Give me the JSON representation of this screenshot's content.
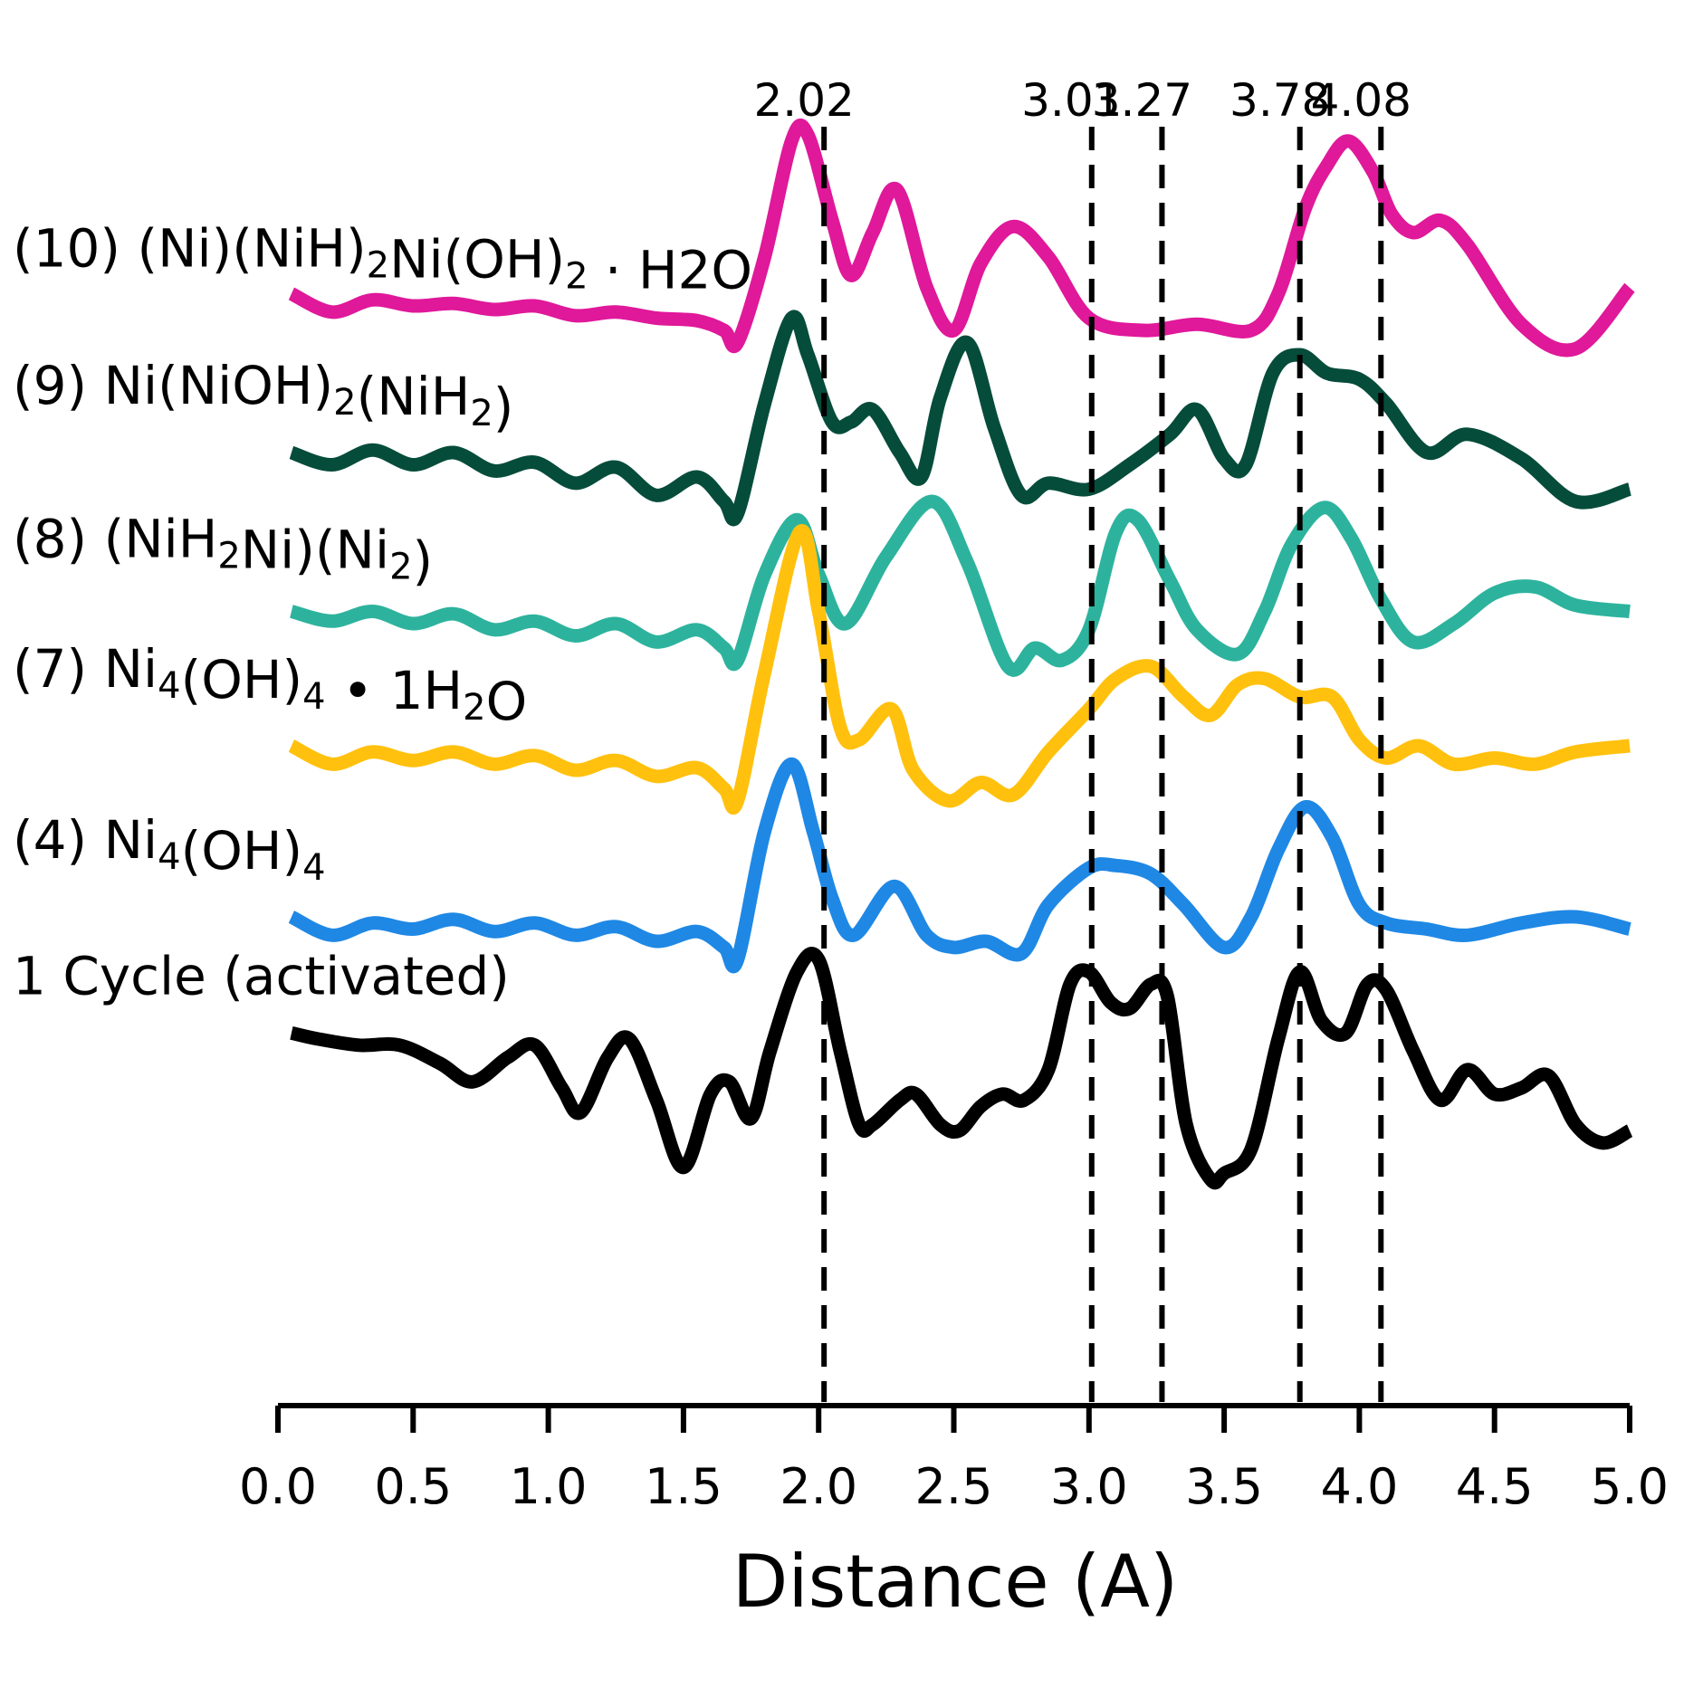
{
  "chart_data": {
    "type": "line",
    "title": "",
    "xlabel": "Distance (A)",
    "ylabel": "",
    "xlim": [
      0.0,
      5.0
    ],
    "xticks": [
      "0.0",
      "0.5",
      "1.0",
      "1.5",
      "2.0",
      "2.5",
      "3.0",
      "3.5",
      "4.0",
      "4.5",
      "5.0"
    ],
    "grid": false,
    "legend": "inline text labels at left of each trace",
    "reference_lines": [
      {
        "x": 2.02,
        "label": "2.02"
      },
      {
        "x": 3.01,
        "label": "3.01"
      },
      {
        "x": 3.27,
        "label": "3.27"
      },
      {
        "x": 3.78,
        "label": "3.78"
      },
      {
        "x": 4.08,
        "label": "4.08"
      }
    ],
    "y_scale": "offset traces, arbitrary units",
    "series": [
      {
        "name": "(10) (Ni)(NiH)₂Ni(OH)₂ · H2O",
        "label_parts": [
          {
            "t": "(10) (Ni)(NiH)"
          },
          {
            "t": "2",
            "sub": true
          },
          {
            "t": "Ni(OH)"
          },
          {
            "t": "2",
            "sub": true
          },
          {
            "t": " · H2O"
          }
        ],
        "color": "#e0189a",
        "offset": 5.0,
        "x": [
          0.05,
          0.2,
          0.35,
          0.5,
          0.65,
          0.8,
          0.95,
          1.1,
          1.25,
          1.4,
          1.55,
          1.65,
          1.7,
          1.8,
          1.9,
          1.96,
          2.05,
          2.12,
          2.2,
          2.29,
          2.4,
          2.5,
          2.6,
          2.72,
          2.85,
          3.0,
          3.2,
          3.4,
          3.6,
          3.7,
          3.8,
          3.88,
          3.96,
          4.05,
          4.12,
          4.2,
          4.3,
          4.4,
          4.6,
          4.8,
          5.0
        ],
        "y": [
          0.3,
          0.15,
          0.25,
          0.2,
          0.22,
          0.17,
          0.2,
          0.12,
          0.15,
          0.1,
          0.08,
          0.0,
          -0.1,
          0.6,
          1.55,
          1.6,
          0.9,
          0.45,
          0.8,
          1.15,
          0.35,
          0.0,
          0.55,
          0.85,
          0.6,
          0.1,
          0.0,
          0.05,
          0.0,
          0.3,
          1.0,
          1.35,
          1.55,
          1.3,
          0.95,
          0.8,
          0.9,
          0.7,
          0.05,
          -0.15,
          0.35
        ]
      },
      {
        "name": "(9) Ni(NiOH)₂(NiH₂)",
        "label_parts": [
          {
            "t": "(9) Ni(NiOH)"
          },
          {
            "t": "2",
            "sub": true
          },
          {
            "t": "(NiH"
          },
          {
            "t": "2",
            "sub": true
          },
          {
            "t": ")"
          }
        ],
        "color": "#064c3b",
        "offset": 3.7,
        "x": [
          0.05,
          0.2,
          0.35,
          0.5,
          0.65,
          0.8,
          0.95,
          1.1,
          1.25,
          1.4,
          1.55,
          1.65,
          1.7,
          1.8,
          1.9,
          1.96,
          2.05,
          2.12,
          2.2,
          2.3,
          2.38,
          2.45,
          2.55,
          2.65,
          2.75,
          2.85,
          3.0,
          3.15,
          3.3,
          3.4,
          3.5,
          3.58,
          3.68,
          3.78,
          3.88,
          4.0,
          4.1,
          4.25,
          4.4,
          4.6,
          4.8,
          5.0
        ],
        "y": [
          0.3,
          0.2,
          0.32,
          0.2,
          0.3,
          0.15,
          0.22,
          0.05,
          0.18,
          -0.05,
          0.1,
          -0.1,
          -0.2,
          0.7,
          1.4,
          1.1,
          0.55,
          0.55,
          0.65,
          0.3,
          0.1,
          0.75,
          1.2,
          0.5,
          -0.05,
          0.05,
          0.0,
          0.2,
          0.45,
          0.65,
          0.25,
          0.2,
          0.95,
          1.1,
          0.95,
          0.9,
          0.7,
          0.3,
          0.45,
          0.25,
          -0.1,
          0.0
        ]
      },
      {
        "name": "(8) (NiH₂Ni)(Ni₂)",
        "label_parts": [
          {
            "t": "(8) (NiH"
          },
          {
            "t": "2",
            "sub": true
          },
          {
            "t": "Ni)(Ni"
          },
          {
            "t": "2",
            "sub": true
          },
          {
            "t": ")"
          }
        ],
        "color": "#2db39d",
        "offset": 2.5,
        "x": [
          0.05,
          0.2,
          0.35,
          0.5,
          0.65,
          0.8,
          0.95,
          1.1,
          1.25,
          1.4,
          1.55,
          1.65,
          1.7,
          1.8,
          1.92,
          2.0,
          2.1,
          2.25,
          2.42,
          2.55,
          2.7,
          2.8,
          2.9,
          3.0,
          3.1,
          3.18,
          3.3,
          3.4,
          3.55,
          3.65,
          3.75,
          3.87,
          3.97,
          4.08,
          4.2,
          4.35,
          4.5,
          4.65,
          4.8,
          5.0
        ],
        "y": [
          0.2,
          0.12,
          0.2,
          0.1,
          0.18,
          0.05,
          0.12,
          0.0,
          0.1,
          -0.05,
          0.05,
          -0.1,
          -0.2,
          0.5,
          0.95,
          0.5,
          0.1,
          0.65,
          1.1,
          0.6,
          -0.25,
          -0.1,
          -0.2,
          0.05,
          0.85,
          0.95,
          0.45,
          0.05,
          -0.15,
          0.2,
          0.75,
          1.05,
          0.8,
          0.3,
          -0.05,
          0.1,
          0.35,
          0.4,
          0.25,
          0.2
        ]
      },
      {
        "name": "(7) Ni₄(OH)₄ • 1H₂O",
        "label_parts": [
          {
            "t": "(7) Ni"
          },
          {
            "t": "4",
            "sub": true
          },
          {
            "t": "(OH)"
          },
          {
            "t": "4",
            "sub": true
          },
          {
            "t": " • 1H"
          },
          {
            "t": "2",
            "sub": true
          },
          {
            "t": "O"
          }
        ],
        "color": "#ffc10e",
        "offset": 1.3,
        "x": [
          0.05,
          0.2,
          0.35,
          0.5,
          0.65,
          0.8,
          0.95,
          1.1,
          1.25,
          1.4,
          1.55,
          1.65,
          1.7,
          1.8,
          1.93,
          2.0,
          2.08,
          2.15,
          2.27,
          2.35,
          2.48,
          2.6,
          2.72,
          2.85,
          3.0,
          3.1,
          3.23,
          3.35,
          3.45,
          3.55,
          3.65,
          3.78,
          3.9,
          4.0,
          4.1,
          4.22,
          4.35,
          4.5,
          4.65,
          4.8,
          5.0
        ],
        "y": [
          0.3,
          0.15,
          0.25,
          0.18,
          0.25,
          0.15,
          0.22,
          0.1,
          0.18,
          0.05,
          0.12,
          -0.05,
          -0.15,
          0.9,
          2.05,
          1.4,
          0.45,
          0.35,
          0.6,
          0.1,
          -0.15,
          0.0,
          -0.1,
          0.25,
          0.6,
          0.85,
          0.95,
          0.7,
          0.55,
          0.8,
          0.85,
          0.7,
          0.7,
          0.35,
          0.2,
          0.3,
          0.15,
          0.2,
          0.15,
          0.25,
          0.3
        ]
      },
      {
        "name": "(4) Ni₄(OH)₄",
        "label_parts": [
          {
            "t": "(4) Ni"
          },
          {
            "t": "4",
            "sub": true
          },
          {
            "t": "(OH)"
          },
          {
            "t": "4",
            "sub": true
          }
        ],
        "color": "#1f88e5",
        "offset": 0.0,
        "x": [
          0.05,
          0.2,
          0.35,
          0.5,
          0.65,
          0.8,
          0.95,
          1.1,
          1.25,
          1.4,
          1.55,
          1.65,
          1.7,
          1.8,
          1.9,
          1.98,
          2.05,
          2.13,
          2.28,
          2.4,
          2.5,
          2.62,
          2.75,
          2.85,
          3.0,
          3.1,
          3.23,
          3.35,
          3.5,
          3.6,
          3.7,
          3.8,
          3.9,
          4.0,
          4.1,
          4.25,
          4.4,
          4.6,
          4.8,
          5.0
        ],
        "y": [
          0.2,
          0.05,
          0.15,
          0.1,
          0.18,
          0.08,
          0.15,
          0.05,
          0.12,
          0.0,
          0.08,
          -0.05,
          -0.15,
          0.9,
          1.45,
          0.9,
          0.35,
          0.05,
          0.45,
          0.05,
          -0.05,
          0.0,
          -0.1,
          0.3,
          0.6,
          0.62,
          0.55,
          0.3,
          -0.05,
          0.2,
          0.75,
          1.1,
          0.85,
          0.3,
          0.15,
          0.1,
          0.05,
          0.15,
          0.2,
          0.1
        ]
      },
      {
        "name": "1 Cycle (activated)",
        "label_parts": [
          {
            "t": "1 Cycle (activated)"
          }
        ],
        "color": "#000000",
        "offset": -1.3,
        "x": [
          0.05,
          0.15,
          0.3,
          0.45,
          0.6,
          0.72,
          0.85,
          0.95,
          1.05,
          1.12,
          1.22,
          1.3,
          1.4,
          1.5,
          1.6,
          1.67,
          1.75,
          1.82,
          1.92,
          2.0,
          2.08,
          2.15,
          2.2,
          2.3,
          2.36,
          2.45,
          2.52,
          2.6,
          2.68,
          2.76,
          2.85,
          2.93,
          3.0,
          3.08,
          3.15,
          3.23,
          3.29,
          3.36,
          3.45,
          3.5,
          3.6,
          3.7,
          3.78,
          3.86,
          3.95,
          4.03,
          4.1,
          4.2,
          4.3,
          4.4,
          4.5,
          4.6,
          4.7,
          4.8,
          4.9,
          5.0
        ],
        "y": [
          0.55,
          0.5,
          0.45,
          0.45,
          0.3,
          0.15,
          0.35,
          0.45,
          0.1,
          -0.1,
          0.35,
          0.5,
          0.0,
          -0.55,
          0.05,
          0.15,
          -0.15,
          0.4,
          1.05,
          1.15,
          0.4,
          -0.2,
          -0.2,
          0.0,
          0.05,
          -0.2,
          -0.25,
          -0.05,
          0.05,
          0.0,
          0.25,
          0.95,
          1.05,
          0.8,
          0.75,
          0.95,
          0.85,
          -0.2,
          -0.65,
          -0.6,
          -0.4,
          0.5,
          1.05,
          0.65,
          0.55,
          0.95,
          0.9,
          0.4,
          0.0,
          0.25,
          0.05,
          0.1,
          0.2,
          -0.2,
          -0.35,
          -0.25
        ]
      }
    ]
  }
}
